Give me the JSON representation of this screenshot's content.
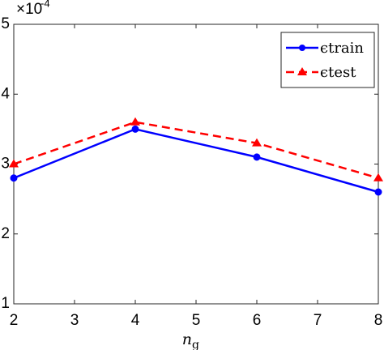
{
  "chart_data": {
    "type": "line",
    "x": [
      2,
      4,
      6,
      8
    ],
    "series": [
      {
        "name": "ϵtrain",
        "color": "#0000ff",
        "marker": "circle",
        "dash": "solid",
        "values": [
          2.8,
          3.5,
          3.1,
          2.6
        ]
      },
      {
        "name": "ϵtest",
        "color": "#ff0000",
        "marker": "triangle",
        "dash": "dashed",
        "values": [
          3.0,
          3.6,
          3.3,
          2.8
        ]
      }
    ],
    "xlabel": "n",
    "xlabel_subscript": "g",
    "y_multiplier": {
      "base": "×10",
      "exponent": "-4"
    },
    "xlim": [
      2,
      8
    ],
    "xticks": [
      2,
      3,
      4,
      5,
      6,
      7,
      8
    ],
    "ylim": [
      1,
      5
    ],
    "yticks": [
      1,
      2,
      3,
      4,
      5
    ],
    "grid": false,
    "legend": "upper right"
  }
}
